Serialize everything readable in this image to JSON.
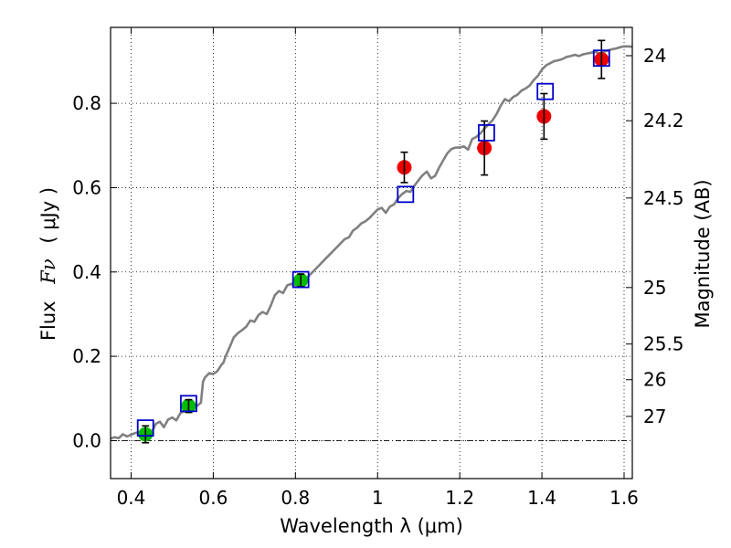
{
  "chart_data": {
    "type": "scatter",
    "xlabel": "Wavelength  λ (μm)",
    "ylabel_prefix": "Flux",
    "ylabel_math": "Fν",
    "ylabel_unit": "( μJy )",
    "y2label": "Magnitude (AB)",
    "xlim": [
      0.35,
      1.62
    ],
    "ylim": [
      -0.09,
      0.98
    ],
    "grid": true,
    "x_ticks": [
      {
        "value": 0.4,
        "label": "0.4"
      },
      {
        "value": 0.6,
        "label": "0.6"
      },
      {
        "value": 0.8,
        "label": "0.8"
      },
      {
        "value": 1.0,
        "label": "1"
      },
      {
        "value": 1.2,
        "label": "1.2"
      },
      {
        "value": 1.4,
        "label": "1.4"
      },
      {
        "value": 1.6,
        "label": "1.6"
      }
    ],
    "y_ticks": [
      {
        "value": 0.0,
        "label": "0.0"
      },
      {
        "value": 0.2,
        "label": "0.2"
      },
      {
        "value": 0.4,
        "label": "0.4"
      },
      {
        "value": 0.6,
        "label": "0.6"
      },
      {
        "value": 0.8,
        "label": "0.8"
      }
    ],
    "y2_ticks": [
      {
        "flux": 0.9129,
        "label": "24"
      },
      {
        "flux": 0.7587,
        "label": "24.2"
      },
      {
        "flux": 0.5754,
        "label": "24.5"
      },
      {
        "flux": 0.3631,
        "label": "25"
      },
      {
        "flux": 0.2291,
        "label": "25.5"
      },
      {
        "flux": 0.1445,
        "label": "26"
      },
      {
        "flux": 0.0575,
        "label": "27"
      }
    ],
    "zero_line": 0.0,
    "spectrum": {
      "color": "#808080",
      "points": [
        [
          0.35,
          0.005
        ],
        [
          0.36,
          0.008
        ],
        [
          0.37,
          0.006
        ],
        [
          0.38,
          0.015
        ],
        [
          0.39,
          0.01
        ],
        [
          0.4,
          0.014
        ],
        [
          0.41,
          0.018
        ],
        [
          0.42,
          0.02
        ],
        [
          0.43,
          0.025
        ],
        [
          0.44,
          0.028
        ],
        [
          0.45,
          0.02
        ],
        [
          0.46,
          0.04
        ],
        [
          0.47,
          0.045
        ],
        [
          0.48,
          0.032
        ],
        [
          0.49,
          0.05
        ],
        [
          0.5,
          0.055
        ],
        [
          0.51,
          0.048
        ],
        [
          0.52,
          0.065
        ],
        [
          0.53,
          0.07
        ],
        [
          0.54,
          0.075
        ],
        [
          0.55,
          0.08
        ],
        [
          0.56,
          0.082
        ],
        [
          0.57,
          0.09
        ],
        [
          0.575,
          0.14
        ],
        [
          0.58,
          0.15
        ],
        [
          0.59,
          0.16
        ],
        [
          0.6,
          0.158
        ],
        [
          0.61,
          0.165
        ],
        [
          0.62,
          0.18
        ],
        [
          0.625,
          0.185
        ],
        [
          0.63,
          0.2
        ],
        [
          0.64,
          0.222
        ],
        [
          0.65,
          0.245
        ],
        [
          0.66,
          0.255
        ],
        [
          0.67,
          0.262
        ],
        [
          0.68,
          0.27
        ],
        [
          0.69,
          0.285
        ],
        [
          0.7,
          0.282
        ],
        [
          0.71,
          0.298
        ],
        [
          0.72,
          0.305
        ],
        [
          0.73,
          0.3
        ],
        [
          0.74,
          0.32
        ],
        [
          0.75,
          0.345
        ],
        [
          0.76,
          0.355
        ],
        [
          0.77,
          0.35
        ],
        [
          0.78,
          0.368
        ],
        [
          0.79,
          0.372
        ],
        [
          0.8,
          0.368
        ],
        [
          0.81,
          0.372
        ],
        [
          0.82,
          0.382
        ],
        [
          0.83,
          0.388
        ],
        [
          0.84,
          0.398
        ],
        [
          0.85,
          0.408
        ],
        [
          0.86,
          0.418
        ],
        [
          0.87,
          0.428
        ],
        [
          0.88,
          0.438
        ],
        [
          0.89,
          0.448
        ],
        [
          0.9,
          0.458
        ],
        [
          0.91,
          0.468
        ],
        [
          0.92,
          0.478
        ],
        [
          0.93,
          0.482
        ],
        [
          0.94,
          0.498
        ],
        [
          0.95,
          0.505
        ],
        [
          0.96,
          0.515
        ],
        [
          0.97,
          0.52
        ],
        [
          0.98,
          0.528
        ],
        [
          0.99,
          0.538
        ],
        [
          1.0,
          0.548
        ],
        [
          1.01,
          0.552
        ],
        [
          1.02,
          0.54
        ],
        [
          1.03,
          0.555
        ],
        [
          1.04,
          0.56
        ],
        [
          1.05,
          0.575
        ],
        [
          1.06,
          0.585
        ],
        [
          1.07,
          0.592
        ],
        [
          1.08,
          0.59
        ],
        [
          1.09,
          0.605
        ],
        [
          1.1,
          0.618
        ],
        [
          1.11,
          0.63
        ],
        [
          1.12,
          0.638
        ],
        [
          1.13,
          0.622
        ],
        [
          1.14,
          0.628
        ],
        [
          1.15,
          0.648
        ],
        [
          1.16,
          0.665
        ],
        [
          1.17,
          0.682
        ],
        [
          1.18,
          0.692
        ],
        [
          1.19,
          0.695
        ],
        [
          1.2,
          0.695
        ],
        [
          1.21,
          0.698
        ],
        [
          1.22,
          0.69
        ],
        [
          1.23,
          0.715
        ],
        [
          1.24,
          0.72
        ],
        [
          1.25,
          0.728
        ],
        [
          1.26,
          0.74
        ],
        [
          1.27,
          0.75
        ],
        [
          1.28,
          0.76
        ],
        [
          1.29,
          0.775
        ],
        [
          1.3,
          0.795
        ],
        [
          1.31,
          0.81
        ],
        [
          1.32,
          0.805
        ],
        [
          1.33,
          0.815
        ],
        [
          1.34,
          0.82
        ],
        [
          1.35,
          0.83
        ],
        [
          1.36,
          0.835
        ],
        [
          1.37,
          0.842
        ],
        [
          1.38,
          0.855
        ],
        [
          1.39,
          0.865
        ],
        [
          1.4,
          0.88
        ],
        [
          1.41,
          0.89
        ],
        [
          1.42,
          0.895
        ],
        [
          1.43,
          0.9
        ],
        [
          1.44,
          0.902
        ],
        [
          1.45,
          0.905
        ],
        [
          1.46,
          0.91
        ],
        [
          1.47,
          0.912
        ],
        [
          1.48,
          0.915
        ],
        [
          1.49,
          0.912
        ],
        [
          1.5,
          0.916
        ],
        [
          1.51,
          0.918
        ],
        [
          1.52,
          0.92
        ],
        [
          1.53,
          0.922
        ],
        [
          1.54,
          0.918
        ],
        [
          1.55,
          0.922
        ],
        [
          1.56,
          0.925
        ],
        [
          1.57,
          0.928
        ],
        [
          1.58,
          0.93
        ],
        [
          1.59,
          0.933
        ],
        [
          1.6,
          0.935
        ],
        [
          1.61,
          0.935
        ],
        [
          1.62,
          0.934
        ]
      ]
    },
    "model_boxes": {
      "color": "#0000cc",
      "points": [
        [
          0.435,
          0.03
        ],
        [
          0.54,
          0.088
        ],
        [
          0.813,
          0.382
        ],
        [
          1.068,
          0.584
        ],
        [
          1.265,
          0.73
        ],
        [
          1.408,
          0.828
        ],
        [
          1.545,
          0.907
        ]
      ]
    },
    "green_points": {
      "color": "#00bb00",
      "points": [
        {
          "x": 0.435,
          "y": 0.015,
          "err": 0.02
        },
        {
          "x": 0.54,
          "y": 0.082,
          "err": 0.015
        },
        {
          "x": 0.813,
          "y": 0.38,
          "err": 0.015
        }
      ]
    },
    "red_points": {
      "color": "#ee0000",
      "points": [
        {
          "x": 1.065,
          "y": 0.648,
          "err": 0.036
        },
        {
          "x": 1.26,
          "y": 0.694,
          "err": 0.064
        },
        {
          "x": 1.405,
          "y": 0.769,
          "err": 0.054
        },
        {
          "x": 1.545,
          "y": 0.904,
          "err": 0.045
        }
      ]
    }
  }
}
